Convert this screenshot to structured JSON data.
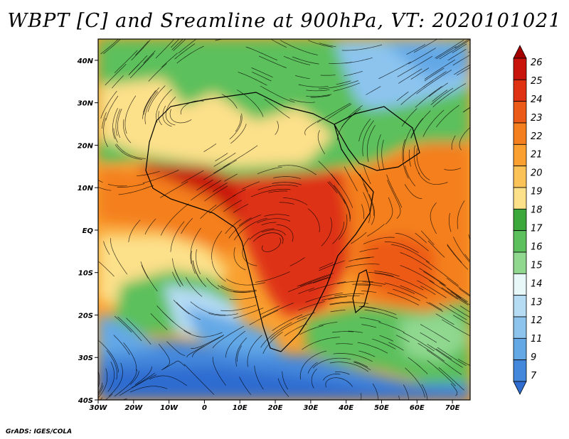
{
  "title": "WBPT [C] and Sreamline at 900hPa, VT: 2020101021",
  "credit": "GrADS: IGES/COLA",
  "map": {
    "lon_range": [
      -30,
      75
    ],
    "lat_range": [
      -40,
      45
    ],
    "lat_ticks": [
      {
        "value": 40,
        "label": "40N"
      },
      {
        "value": 30,
        "label": "30N"
      },
      {
        "value": 20,
        "label": "20N"
      },
      {
        "value": 10,
        "label": "10N"
      },
      {
        "value": 0,
        "label": "EQ"
      },
      {
        "value": -10,
        "label": "10S"
      },
      {
        "value": -20,
        "label": "20S"
      },
      {
        "value": -30,
        "label": "30S"
      },
      {
        "value": -40,
        "label": "40S"
      }
    ],
    "lon_ticks": [
      {
        "value": -30,
        "label": "30W"
      },
      {
        "value": -20,
        "label": "20W"
      },
      {
        "value": -10,
        "label": "10W"
      },
      {
        "value": 0,
        "label": "0"
      },
      {
        "value": 10,
        "label": "10E"
      },
      {
        "value": 20,
        "label": "20E"
      },
      {
        "value": 30,
        "label": "30E"
      },
      {
        "value": 40,
        "label": "40E"
      },
      {
        "value": 50,
        "label": "50E"
      },
      {
        "value": 60,
        "label": "60E"
      },
      {
        "value": 70,
        "label": "70E"
      }
    ]
  },
  "colorbar": {
    "levels": [
      "26",
      "25",
      "24",
      "23",
      "22",
      "21",
      "20",
      "19",
      "18",
      "17",
      "16",
      "15",
      "14",
      "13",
      "12",
      "11",
      "9",
      "7"
    ],
    "colors": [
      "#a50000",
      "#c8140a",
      "#de3212",
      "#ec5a18",
      "#f47f1e",
      "#f9a030",
      "#fbc257",
      "#fde08a",
      "#3ca83c",
      "#5cc05c",
      "#90d890",
      "#e8f8f8",
      "#b6dcf4",
      "#8cc4ee",
      "#64a8e6",
      "#4488dc",
      "#2e6cd0"
    ]
  },
  "field": {
    "regions": [
      {
        "name": "north-africa-green",
        "color": "#5cc05c"
      },
      {
        "name": "sahara-tan",
        "color": "#fde08a"
      },
      {
        "name": "mediterranean-blue",
        "color": "#8cc4ee"
      },
      {
        "name": "sahel-red",
        "color": "#c8140a"
      },
      {
        "name": "central-africa-red",
        "color": "#de3212"
      },
      {
        "name": "indian-ocean-orange",
        "color": "#f47f1e"
      },
      {
        "name": "atlantic-orange",
        "color": "#f9a030"
      },
      {
        "name": "south-atlantic-green",
        "color": "#5cc05c"
      },
      {
        "name": "south-atlantic-blue",
        "color": "#64a8e6"
      },
      {
        "name": "southern-ocean-blue",
        "color": "#4488dc"
      }
    ]
  }
}
